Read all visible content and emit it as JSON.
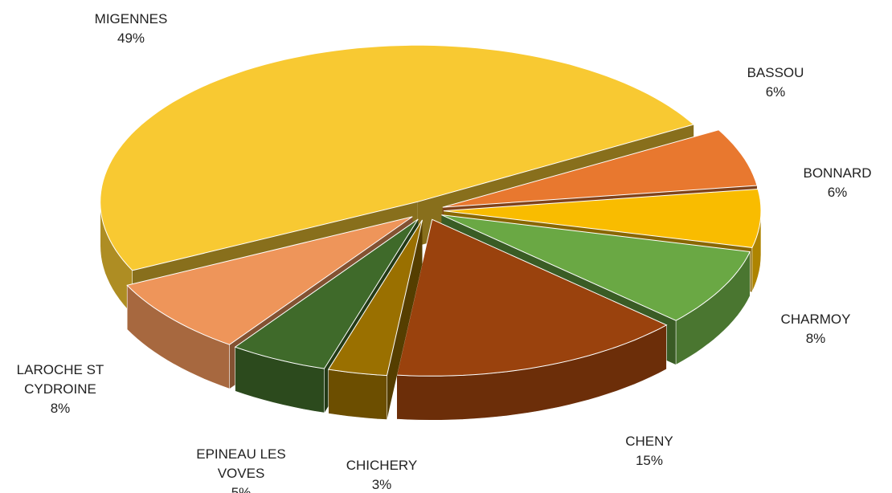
{
  "chart_data": {
    "type": "pie",
    "categories": [
      "MIGENNES",
      "BASSOU",
      "BONNARD",
      "CHARMOY",
      "CHENY",
      "CHICHERY",
      "EPINEAU LES VOVES",
      "LAROCHE ST CYDROINE"
    ],
    "values": [
      49,
      6,
      6,
      8,
      15,
      3,
      5,
      8
    ],
    "value_labels": [
      "49%",
      "6%",
      "6%",
      "8%",
      "15%",
      "3%",
      "5%",
      "8%"
    ],
    "colors": [
      "#f8c932",
      "#e8782f",
      "#f9bc00",
      "#6aa844",
      "#9a420d",
      "#9a7000",
      "#3f6a2a",
      "#ee955a"
    ]
  }
}
